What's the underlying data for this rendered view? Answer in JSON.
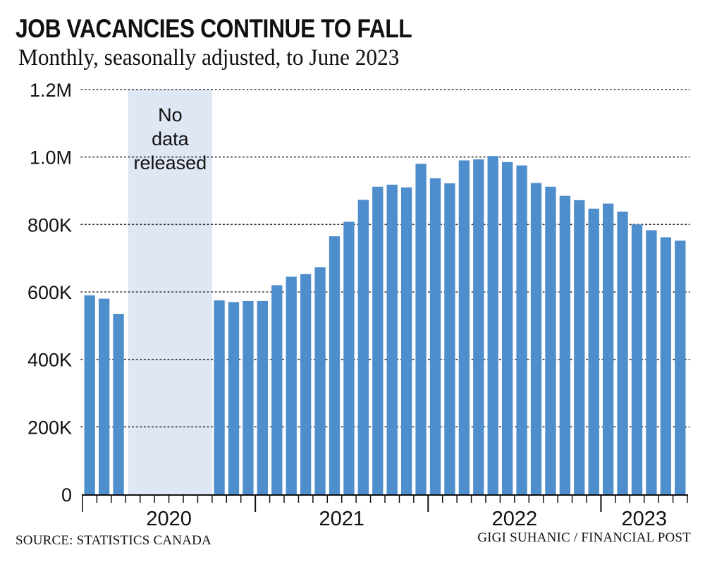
{
  "colors": {
    "bar": "#4f8ecc",
    "gap_band": "#dfe6f4",
    "text": "#111111",
    "grid": "#333333"
  },
  "footer": {
    "source": "SOURCE: STATISTICS CANADA",
    "credit": "GIGI SUHANIC / FINANCIAL POST"
  },
  "chart_data": {
    "type": "bar",
    "title": "JOB VACANCIES CONTINUE TO FALL",
    "subtitle": "Monthly, seasonally adjusted, to June 2023",
    "xlabel": "",
    "ylabel": "",
    "ylim": [
      0,
      1200000
    ],
    "grid": "horizontal dotted",
    "yticks": [
      {
        "value": 0,
        "label": "0"
      },
      {
        "value": 200000,
        "label": "200K"
      },
      {
        "value": 400000,
        "label": "400K"
      },
      {
        "value": 600000,
        "label": "600K"
      },
      {
        "value": 800000,
        "label": "800K"
      },
      {
        "value": 1000000,
        "label": "1.0M"
      },
      {
        "value": 1200000,
        "label": "1.2M"
      }
    ],
    "year_labels": [
      "2020",
      "2021",
      "2022",
      "2023"
    ],
    "gap_annotation": {
      "lines": [
        "No",
        "data",
        "released"
      ],
      "from_month": "2020-04",
      "to_month": "2020-09"
    },
    "months": [
      "2020-01",
      "2020-02",
      "2020-03",
      "2020-04",
      "2020-05",
      "2020-06",
      "2020-07",
      "2020-08",
      "2020-09",
      "2020-10",
      "2020-11",
      "2020-12",
      "2021-01",
      "2021-02",
      "2021-03",
      "2021-04",
      "2021-05",
      "2021-06",
      "2021-07",
      "2021-08",
      "2021-09",
      "2021-10",
      "2021-11",
      "2021-12",
      "2022-01",
      "2022-02",
      "2022-03",
      "2022-04",
      "2022-05",
      "2022-06",
      "2022-07",
      "2022-08",
      "2022-09",
      "2022-10",
      "2022-11",
      "2022-12",
      "2023-01",
      "2023-02",
      "2023-03",
      "2023-04",
      "2023-05",
      "2023-06"
    ],
    "values": [
      590000,
      580000,
      535000,
      null,
      null,
      null,
      null,
      null,
      null,
      575000,
      570000,
      573000,
      573000,
      620000,
      645000,
      653000,
      673000,
      765000,
      808000,
      873000,
      912000,
      918000,
      910000,
      980000,
      937000,
      922000,
      990000,
      993000,
      1003000,
      985000,
      975000,
      923000,
      912000,
      885000,
      872000,
      847000,
      862000,
      838000,
      800000,
      783000,
      762000,
      752000
    ]
  }
}
